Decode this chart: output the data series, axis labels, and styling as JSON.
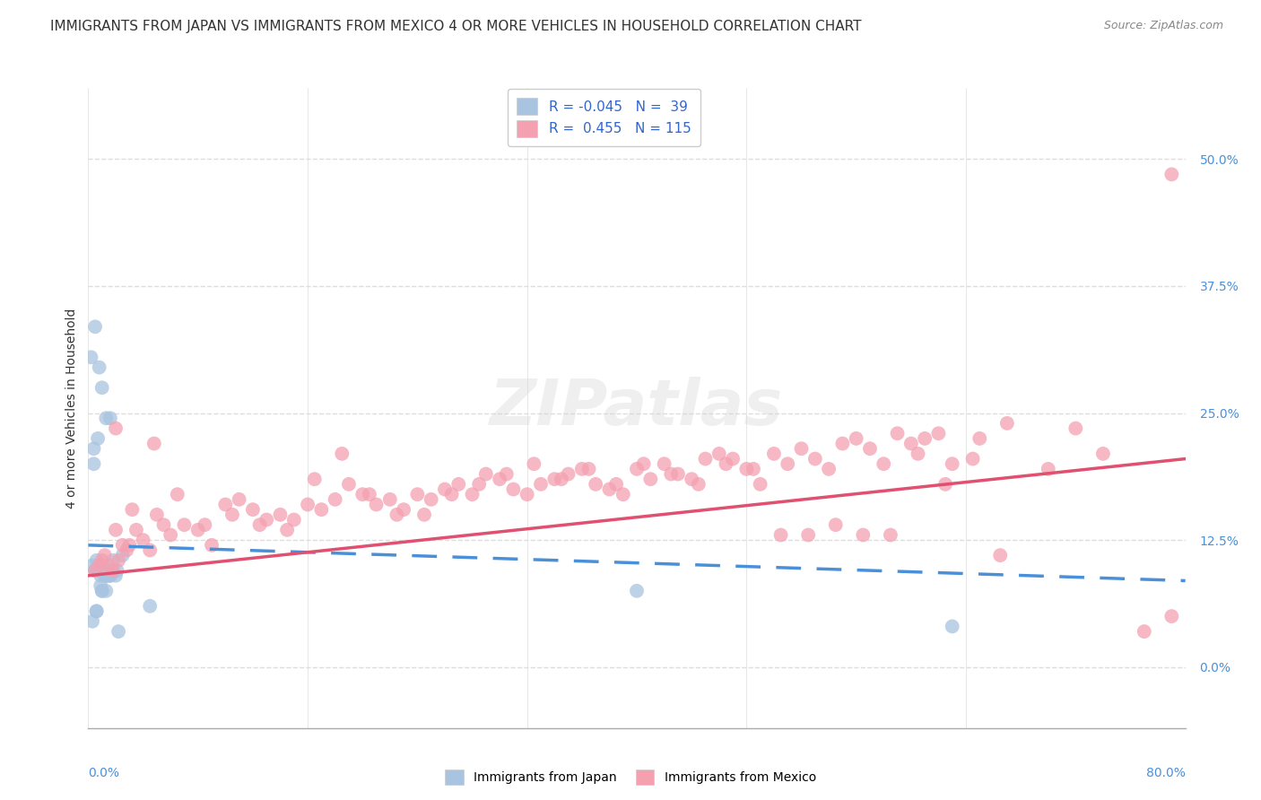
{
  "title": "IMMIGRANTS FROM JAPAN VS IMMIGRANTS FROM MEXICO 4 OR MORE VEHICLES IN HOUSEHOLD CORRELATION CHART",
  "source": "Source: ZipAtlas.com",
  "ylabel": "4 or more Vehicles in Household",
  "ytick_labels": [
    "0.0%",
    "12.5%",
    "25.0%",
    "37.5%",
    "50.0%"
  ],
  "ytick_values": [
    0.0,
    12.5,
    25.0,
    37.5,
    50.0
  ],
  "xmin": 0.0,
  "xmax": 80.0,
  "ymin": -6.0,
  "ymax": 57.0,
  "legend_r1": "-0.045",
  "legend_n1": "39",
  "legend_r2": "0.455",
  "legend_n2": "115",
  "japan_color": "#a8c4e0",
  "mexico_color": "#f4a0b0",
  "japan_line_color": "#4a90d9",
  "mexico_line_color": "#e05070",
  "background_color": "#ffffff",
  "watermark": "ZIPatlas",
  "japan_x": [
    0.3,
    0.4,
    0.5,
    0.5,
    0.6,
    0.6,
    0.7,
    0.8,
    0.8,
    0.9,
    1.0,
    1.0,
    1.1,
    1.2,
    1.3,
    1.3,
    1.4,
    1.5,
    1.6,
    1.6,
    1.7,
    1.8,
    2.0,
    2.1,
    2.2,
    2.5,
    0.2,
    0.4,
    0.5,
    0.8,
    1.0,
    1.3,
    1.6,
    0.3,
    0.6,
    0.9,
    4.5,
    40.0,
    63.0
  ],
  "japan_y": [
    10.0,
    21.5,
    9.5,
    33.5,
    10.5,
    5.5,
    22.5,
    10.0,
    29.5,
    9.0,
    7.5,
    27.5,
    9.5,
    9.0,
    24.5,
    7.5,
    9.0,
    9.5,
    24.5,
    9.0,
    9.5,
    10.5,
    9.0,
    9.5,
    3.5,
    11.0,
    30.5,
    20.0,
    9.5,
    9.5,
    7.5,
    9.0,
    9.0,
    4.5,
    5.5,
    8.0,
    6.0,
    7.5,
    4.0
  ],
  "mexico_x": [
    0.5,
    0.8,
    1.0,
    1.2,
    1.5,
    1.8,
    2.0,
    2.2,
    2.5,
    2.8,
    3.0,
    3.5,
    4.0,
    4.5,
    5.0,
    5.5,
    6.0,
    7.0,
    8.0,
    9.0,
    10.0,
    11.0,
    12.0,
    13.0,
    14.0,
    15.0,
    16.0,
    17.0,
    18.0,
    19.0,
    20.0,
    21.0,
    22.0,
    23.0,
    24.0,
    25.0,
    26.0,
    27.0,
    28.0,
    29.0,
    30.0,
    31.0,
    32.0,
    33.0,
    34.0,
    35.0,
    36.0,
    37.0,
    38.0,
    39.0,
    40.0,
    41.0,
    42.0,
    43.0,
    44.0,
    45.0,
    46.0,
    47.0,
    48.0,
    49.0,
    50.0,
    51.0,
    52.0,
    53.0,
    54.0,
    55.0,
    56.0,
    57.0,
    58.0,
    59.0,
    60.0,
    61.0,
    62.0,
    63.0,
    65.0,
    67.0,
    70.0,
    72.0,
    74.0,
    77.0,
    79.0,
    2.0,
    3.2,
    4.8,
    6.5,
    8.5,
    10.5,
    12.5,
    14.5,
    16.5,
    18.5,
    20.5,
    22.5,
    24.5,
    26.5,
    28.5,
    30.5,
    32.5,
    34.5,
    36.5,
    38.5,
    40.5,
    42.5,
    44.5,
    46.5,
    48.5,
    50.5,
    52.5,
    54.5,
    56.5,
    58.5,
    60.5,
    62.5,
    64.5,
    66.5
  ],
  "mexico_y": [
    9.5,
    10.0,
    10.5,
    11.0,
    10.0,
    9.5,
    13.5,
    10.5,
    12.0,
    11.5,
    12.0,
    13.5,
    12.5,
    11.5,
    15.0,
    14.0,
    13.0,
    14.0,
    13.5,
    12.0,
    16.0,
    16.5,
    15.5,
    14.5,
    15.0,
    14.5,
    16.0,
    15.5,
    16.5,
    18.0,
    17.0,
    16.0,
    16.5,
    15.5,
    17.0,
    16.5,
    17.5,
    18.0,
    17.0,
    19.0,
    18.5,
    17.5,
    17.0,
    18.0,
    18.5,
    19.0,
    19.5,
    18.0,
    17.5,
    17.0,
    19.5,
    18.5,
    20.0,
    19.0,
    18.5,
    20.5,
    21.0,
    20.5,
    19.5,
    18.0,
    21.0,
    20.0,
    21.5,
    20.5,
    19.5,
    22.0,
    22.5,
    21.5,
    20.0,
    23.0,
    22.0,
    22.5,
    23.0,
    20.0,
    22.5,
    24.0,
    19.5,
    23.5,
    21.0,
    3.5,
    5.0,
    23.5,
    15.5,
    22.0,
    17.0,
    14.0,
    15.0,
    14.0,
    13.5,
    18.5,
    21.0,
    17.0,
    15.0,
    15.0,
    17.0,
    18.0,
    19.0,
    20.0,
    18.5,
    19.5,
    18.0,
    20.0,
    19.0,
    18.0,
    20.0,
    19.5,
    13.0,
    13.0,
    14.0,
    13.0,
    13.0,
    21.0,
    18.0,
    20.5,
    11.0
  ],
  "japan_trend_x": [
    0.0,
    80.0
  ],
  "japan_trend_y_start": 12.0,
  "japan_trend_y_end": 8.5,
  "mexico_trend_x": [
    0.0,
    80.0
  ],
  "mexico_trend_y_start": 9.0,
  "mexico_trend_y_end": 20.5,
  "scatter_size": 130,
  "scatter_alpha": 0.75,
  "grid_color": "#dddddd",
  "title_fontsize": 11,
  "axis_label_fontsize": 10,
  "tick_fontsize": 10,
  "legend_fontsize": 11,
  "mexico_extra_x": [
    79.0
  ],
  "mexico_extra_y": [
    48.5
  ]
}
